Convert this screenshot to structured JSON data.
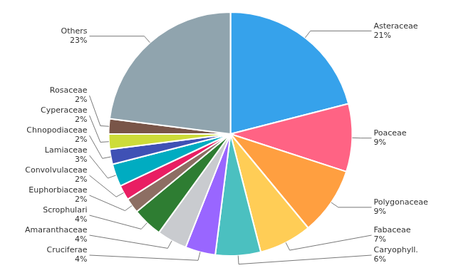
{
  "chart_data": {
    "type": "pie",
    "categories": [
      "Asteraceae",
      "Poaceae",
      "Polygonaceae",
      "Fabaceae",
      "Caryophyll.",
      "Cruciferae",
      "Amaranthaceae",
      "Scrophulari",
      "Euphorbiaceae",
      "Convolvulaceae",
      "Lamiaceae",
      "Chnopodiaceae",
      "Cyperaceae",
      "Rosaceae",
      "Others"
    ],
    "values": [
      21,
      9,
      9,
      7,
      6,
      4,
      4,
      4,
      2,
      2,
      3,
      2,
      2,
      2,
      23
    ],
    "value_labels": [
      "21%",
      "9%",
      "9%",
      "7%",
      "6%",
      "4%",
      "4%",
      "4%",
      "2%",
      "2%",
      "3%",
      "2%",
      "2%",
      "2%",
      "23%"
    ],
    "data_labels": true,
    "colors": [
      "#36a2eb",
      "#ff6384",
      "#ff9f40",
      "#ffcd56",
      "#4bc0c0",
      "#9966ff",
      "#c9cbcf",
      "#2e7d32",
      "#8d6e63",
      "#e91e63",
      "#00acc1",
      "#3f51b5",
      "#cddc39",
      "#795548",
      "#90a4ae"
    ],
    "legend": false
  }
}
